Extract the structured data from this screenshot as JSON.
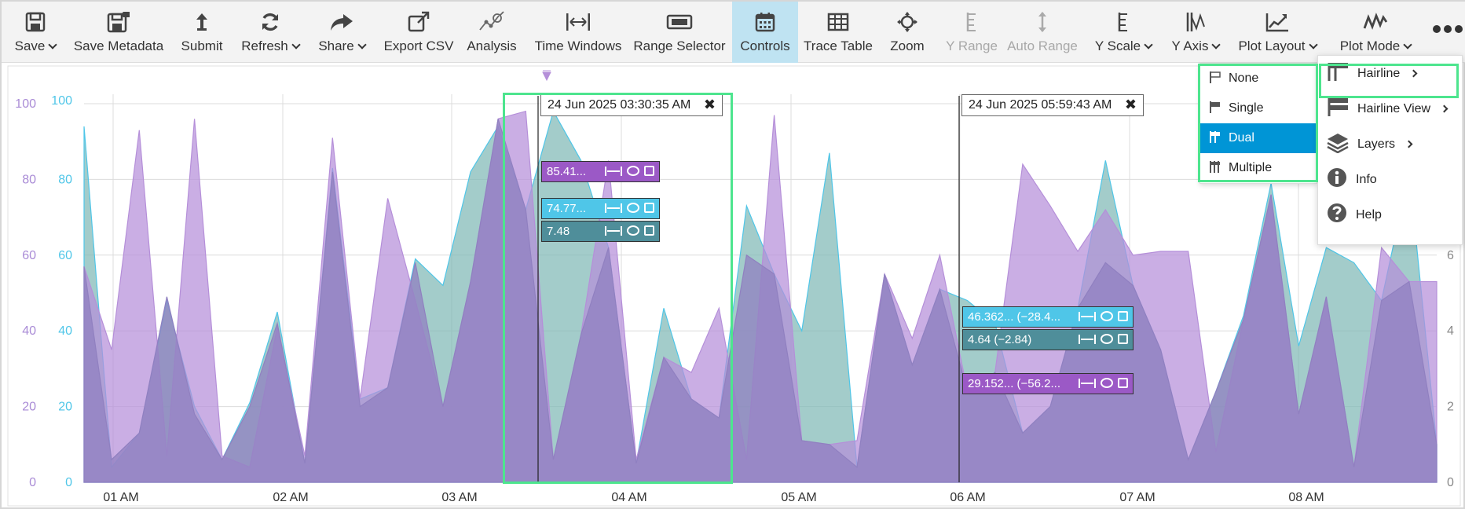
{
  "toolbar": {
    "items": [
      {
        "label": "Save",
        "icon": "save-icon",
        "caret": true
      },
      {
        "label": "Save Metadata",
        "icon": "save-metadata-icon",
        "caret": false
      },
      {
        "label": "Submit",
        "icon": "submit-icon",
        "caret": false
      },
      {
        "label": "Refresh",
        "icon": "refresh-icon",
        "caret": true
      },
      {
        "label": "Share",
        "icon": "share-icon",
        "caret": true
      },
      {
        "label": "Export CSV",
        "icon": "export-icon",
        "caret": false
      },
      {
        "label": "Analysis",
        "icon": "analysis-icon",
        "caret": false
      },
      {
        "label": "Time Windows",
        "icon": "time-windows-icon",
        "caret": false
      },
      {
        "label": "Range Selector",
        "icon": "range-selector-icon",
        "caret": false
      },
      {
        "label": "Controls",
        "icon": "calendar-icon",
        "caret": false,
        "active": true
      },
      {
        "label": "Trace Table",
        "icon": "table-icon",
        "caret": false
      },
      {
        "label": "Zoom",
        "icon": "zoom-icon",
        "caret": false
      },
      {
        "label": "Y Range",
        "icon": "y-range-icon",
        "caret": false,
        "disabled": true
      },
      {
        "label": "Auto Range",
        "icon": "auto-range-icon",
        "caret": false,
        "disabled": true
      },
      {
        "label": "Y Scale",
        "icon": "y-scale-icon",
        "caret": true
      },
      {
        "label": "Y Axis",
        "icon": "y-axis-icon",
        "caret": true
      },
      {
        "label": "Plot Layout",
        "icon": "plot-layout-icon",
        "caret": true
      },
      {
        "label": "Plot Mode",
        "icon": "plot-mode-icon",
        "caret": true
      }
    ]
  },
  "hairlines": [
    {
      "label": "24 Jun 2025 03:30:35 AM",
      "values": [
        {
          "text": "85.41...",
          "color": "#9b59c6"
        },
        {
          "text": "74.77...",
          "color": "#4fc6e8"
        },
        {
          "text": "7.48",
          "color": "#4f8e9a"
        }
      ]
    },
    {
      "label": "24 Jun 2025 05:59:43 AM",
      "values": [
        {
          "text": "46.362...   (−28.4...",
          "color": "#4fc6e8"
        },
        {
          "text": "4.64        (−2.84)",
          "color": "#4f8e9a"
        },
        {
          "text": "29.152...   (−56.2...",
          "color": "#9b59c6"
        }
      ]
    }
  ],
  "hairline_menu": {
    "items": [
      {
        "label": "None",
        "selected": false
      },
      {
        "label": "Single",
        "selected": false
      },
      {
        "label": "Dual",
        "selected": true
      },
      {
        "label": "Multiple",
        "selected": false
      }
    ]
  },
  "controls_menu": {
    "items": [
      {
        "label": "Hairline",
        "icon": "hairline-icon",
        "submenu": true
      },
      {
        "label": "Hairline View",
        "icon": "hairline-view-icon",
        "submenu": true
      },
      {
        "label": "Layers",
        "icon": "layers-icon",
        "submenu": true
      },
      {
        "label": "Info",
        "icon": "info-icon",
        "submenu": false
      },
      {
        "label": "Help",
        "icon": "help-icon",
        "submenu": false
      }
    ]
  },
  "chart_data": {
    "type": "area",
    "x_axis": {
      "type": "time",
      "tick_labels": [
        "01 AM",
        "02 AM",
        "03 AM",
        "04 AM",
        "05 AM",
        "06 AM",
        "07 AM",
        "08 AM"
      ],
      "range": [
        "00:46",
        "08:46"
      ]
    },
    "y_axes": [
      {
        "side": "left-outer",
        "color": "#a98bd6",
        "ticks": [
          0,
          20,
          40,
          60,
          80,
          100
        ],
        "range": [
          0,
          100
        ]
      },
      {
        "side": "left-inner",
        "color": "#4fc6e8",
        "ticks": [
          0,
          20,
          40,
          60,
          80,
          100
        ],
        "range": [
          0,
          100
        ]
      },
      {
        "side": "right",
        "color": "#888888",
        "ticks": [
          0,
          2,
          4,
          6
        ],
        "range": [
          0,
          10
        ]
      }
    ],
    "grid": true,
    "series": [
      {
        "color": "#7fb8b6",
        "stroke": "#4fc6e8",
        "values": [
          94,
          4,
          13,
          48,
          20,
          6,
          21,
          45,
          5,
          83,
          22,
          25,
          59,
          52,
          82,
          94,
          72,
          98,
          85,
          62,
          5,
          46,
          22,
          17,
          73,
          55,
          40,
          87,
          4,
          55,
          31,
          51,
          48,
          42,
          13,
          20,
          46,
          85,
          52,
          35,
          6,
          24,
          44,
          79,
          36,
          62,
          58,
          48,
          82,
          10
        ]
      },
      {
        "color": "#b58fd9",
        "stroke": "#b58fd9",
        "values": [
          57,
          35,
          93,
          7,
          96,
          7,
          4,
          41,
          7,
          91,
          22,
          75,
          48,
          20,
          53,
          96,
          98,
          6,
          39,
          85,
          6,
          33,
          29,
          46,
          6,
          97,
          11,
          10,
          11,
          55,
          38,
          60,
          24,
          29,
          84,
          73,
          61,
          72,
          60,
          61,
          61,
          8,
          43,
          76,
          18,
          49,
          4,
          62,
          53,
          53
        ]
      },
      {
        "color": "#9080c0",
        "stroke": "#9080c0",
        "values": [
          57,
          6,
          13,
          49,
          18,
          6,
          20,
          42,
          5,
          82,
          20,
          25,
          58,
          20,
          53,
          96,
          72,
          6,
          39,
          62,
          5,
          33,
          22,
          17,
          60,
          55,
          11,
          10,
          4,
          55,
          31,
          51,
          24,
          29,
          13,
          20,
          46,
          58,
          52,
          35,
          6,
          24,
          43,
          76,
          18,
          49,
          4,
          48,
          53,
          10
        ]
      }
    ]
  }
}
